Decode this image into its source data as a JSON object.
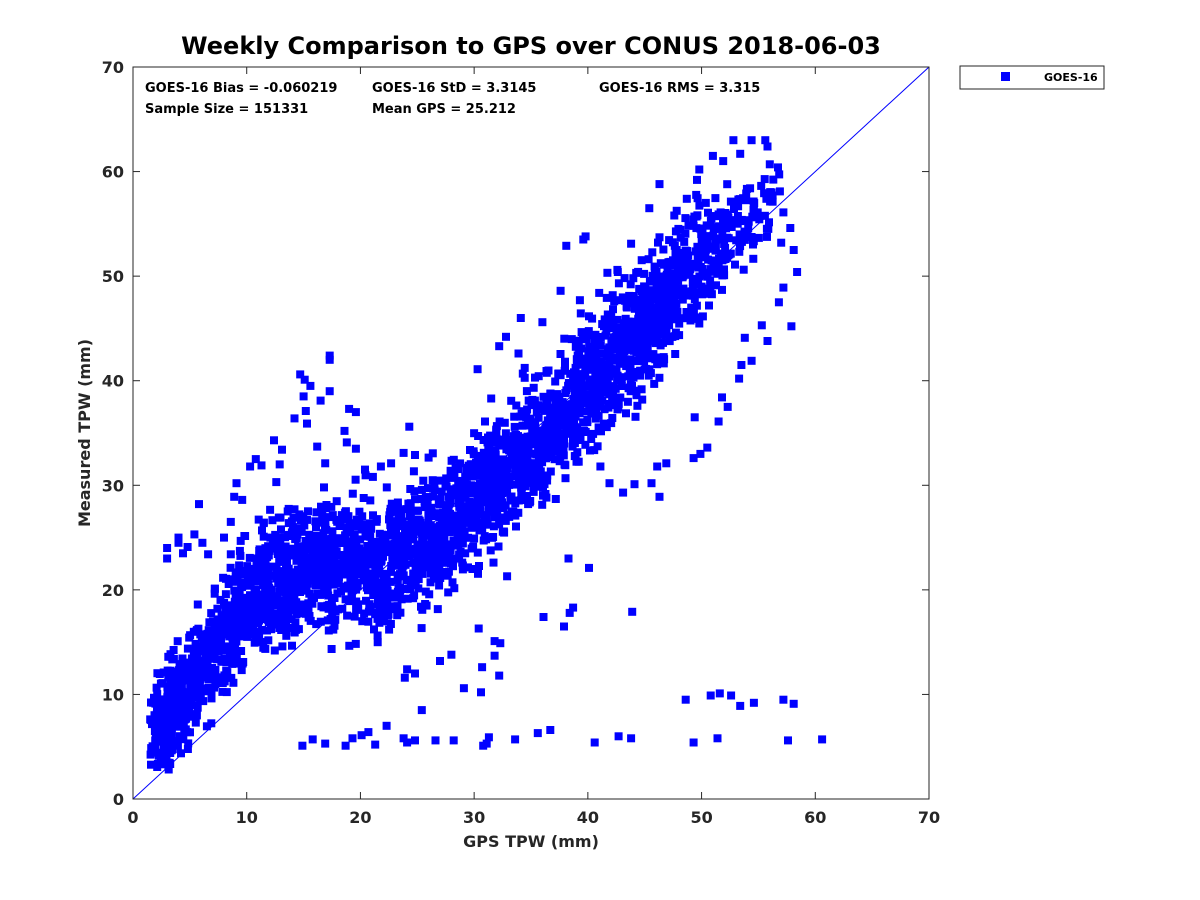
{
  "chart_data": {
    "type": "scatter",
    "title": "Weekly Comparison to GPS over CONUS 2018-06-03",
    "xlabel": "GPS TPW (mm)",
    "ylabel": "Measured TPW (mm)",
    "xlim": [
      0,
      70
    ],
    "ylim": [
      0,
      70
    ],
    "xticks": [
      0,
      10,
      20,
      30,
      40,
      50,
      60,
      70
    ],
    "yticks": [
      0,
      10,
      20,
      30,
      40,
      50,
      60,
      70
    ],
    "grid": false,
    "legend_position": "outside-top-right",
    "reference_line": {
      "label": "1:1",
      "from": [
        0,
        0
      ],
      "to": [
        70,
        70
      ],
      "color": "#0000ff"
    },
    "stats": {
      "bias_text": "GOES-16 Bias = -0.060219",
      "std_text": "GOES-16 StD = 3.3145",
      "rms_text": "GOES-16 RMS = 3.315",
      "sample_text": "Sample Size = 151331",
      "mean_text": "Mean GPS = 25.212"
    },
    "series": [
      {
        "name": "GOES-16",
        "color": "#0000ff",
        "marker": "square",
        "main_cloud": [
          [
            1.5,
            3.5,
            2.5,
            3.2,
            0.9
          ],
          [
            3,
            5,
            4,
            3.0,
            1.0
          ],
          [
            5,
            7,
            5,
            3.0,
            1.0
          ],
          [
            7,
            9,
            6,
            3.2,
            1.0
          ],
          [
            9,
            11,
            7,
            3.4,
            1.0
          ],
          [
            11,
            13,
            7,
            3.6,
            1.0
          ],
          [
            13,
            15,
            6,
            3.6,
            1.0
          ],
          [
            15,
            17,
            5,
            3.6,
            1.0
          ],
          [
            17,
            19,
            3,
            3.6,
            1.0
          ],
          [
            19,
            21,
            1,
            3.6,
            1.0
          ],
          [
            21,
            23,
            -1,
            3.6,
            1.0
          ],
          [
            23,
            25,
            -2,
            3.6,
            1.0
          ],
          [
            25,
            27,
            -3,
            3.6,
            1.0
          ],
          [
            27,
            29,
            -3,
            3.6,
            1.0
          ],
          [
            29,
            31,
            -3,
            3.6,
            1.0
          ],
          [
            31,
            33,
            -3,
            3.6,
            1.0
          ],
          [
            33,
            35,
            -3,
            3.6,
            1.0
          ],
          [
            35,
            37,
            -3,
            3.6,
            1.0
          ],
          [
            37,
            39,
            -3,
            3.8,
            1.0
          ],
          [
            39,
            41,
            -2,
            3.8,
            1.0
          ],
          [
            41,
            43,
            -2,
            3.8,
            1.0
          ],
          [
            43,
            45,
            -1,
            3.8,
            1.0
          ],
          [
            45,
            47,
            -1,
            3.8,
            0.9
          ],
          [
            47,
            49,
            0,
            3.6,
            0.8
          ],
          [
            49,
            51,
            0,
            3.4,
            0.65
          ],
          [
            51,
            53,
            0,
            3.0,
            0.45
          ],
          [
            53,
            55,
            0,
            2.8,
            0.3
          ],
          [
            55,
            57,
            0,
            2.6,
            0.15
          ]
        ],
        "outliers": [
          [
            3.0,
            24.0
          ],
          [
            3.0,
            23.0
          ],
          [
            4.0,
            25.0
          ],
          [
            4.0,
            24.5
          ],
          [
            4.4,
            23.5
          ],
          [
            4.8,
            24.1
          ],
          [
            5.4,
            25.3
          ],
          [
            5.8,
            28.2
          ],
          [
            6.1,
            24.5
          ],
          [
            6.6,
            23.4
          ],
          [
            8.0,
            25.0
          ],
          [
            8.6,
            26.5
          ],
          [
            8.6,
            23.4
          ],
          [
            8.9,
            28.9
          ],
          [
            9.1,
            30.2
          ],
          [
            9.6,
            28.6
          ],
          [
            10.3,
            31.8
          ],
          [
            10.8,
            32.5
          ],
          [
            11.3,
            31.9
          ],
          [
            12.6,
            30.3
          ],
          [
            12.9,
            32.0
          ],
          [
            13.1,
            33.4
          ],
          [
            12.4,
            34.3
          ],
          [
            13.6,
            27.5
          ],
          [
            14.2,
            36.4
          ],
          [
            14.7,
            40.6
          ],
          [
            15.1,
            40.1
          ],
          [
            15.0,
            38.5
          ],
          [
            15.2,
            37.1
          ],
          [
            15.3,
            35.9
          ],
          [
            15.6,
            39.5
          ],
          [
            16.5,
            38.1
          ],
          [
            16.2,
            33.7
          ],
          [
            16.8,
            29.8
          ],
          [
            16.9,
            32.1
          ],
          [
            17.3,
            42.4
          ],
          [
            17.3,
            42.0
          ],
          [
            17.3,
            39.0
          ],
          [
            18.6,
            35.2
          ],
          [
            19.0,
            37.3
          ],
          [
            18.8,
            34.1
          ],
          [
            19.6,
            37.0
          ],
          [
            19.6,
            33.5
          ],
          [
            20.4,
            31.5
          ],
          [
            21.1,
            30.8
          ],
          [
            21.8,
            31.8
          ],
          [
            22.7,
            32.1
          ],
          [
            23.8,
            33.1
          ],
          [
            24.3,
            35.6
          ],
          [
            24.8,
            32.9
          ],
          [
            2.7,
            12.1
          ],
          [
            3.1,
            13.6
          ],
          [
            3.6,
            13.4
          ],
          [
            4.1,
            12.9
          ],
          [
            14.9,
            5.1
          ],
          [
            15.8,
            5.7
          ],
          [
            16.9,
            5.3
          ],
          [
            18.7,
            5.1
          ],
          [
            19.3,
            5.8
          ],
          [
            20.1,
            6.1
          ],
          [
            20.7,
            6.4
          ],
          [
            21.3,
            5.2
          ],
          [
            22.3,
            7.0
          ],
          [
            23.8,
            5.8
          ],
          [
            24.1,
            5.4
          ],
          [
            24.8,
            5.6
          ],
          [
            26.6,
            5.6
          ],
          [
            28.2,
            5.6
          ],
          [
            30.8,
            5.1
          ],
          [
            31.1,
            5.3
          ],
          [
            31.3,
            5.9
          ],
          [
            33.6,
            5.7
          ],
          [
            35.6,
            6.3
          ],
          [
            36.7,
            6.6
          ],
          [
            40.6,
            5.4
          ],
          [
            42.7,
            6.0
          ],
          [
            43.8,
            5.8
          ],
          [
            49.3,
            5.4
          ],
          [
            51.4,
            5.8
          ],
          [
            53.4,
            8.9
          ],
          [
            54.6,
            9.2
          ],
          [
            57.6,
            5.6
          ],
          [
            60.6,
            5.7
          ],
          [
            58.1,
            9.1
          ],
          [
            48.6,
            9.5
          ],
          [
            50.8,
            9.9
          ],
          [
            51.6,
            10.1
          ],
          [
            52.6,
            9.9
          ],
          [
            57.2,
            9.5
          ],
          [
            23.9,
            11.6
          ],
          [
            24.1,
            12.4
          ],
          [
            29.1,
            10.6
          ],
          [
            30.6,
            10.2
          ],
          [
            30.7,
            12.6
          ],
          [
            31.8,
            15.1
          ],
          [
            31.8,
            13.7
          ],
          [
            36.1,
            17.4
          ],
          [
            38.3,
            23.0
          ],
          [
            40.1,
            22.1
          ],
          [
            37.9,
            16.5
          ],
          [
            38.7,
            18.3
          ],
          [
            32.3,
            14.9
          ],
          [
            38.4,
            17.8
          ],
          [
            43.9,
            17.9
          ],
          [
            27.0,
            13.2
          ],
          [
            32.2,
            11.8
          ],
          [
            25.4,
            8.5
          ],
          [
            28.0,
            13.8
          ],
          [
            30.4,
            16.3
          ],
          [
            24.8,
            12.0
          ],
          [
            32.9,
            21.3
          ],
          [
            57.8,
            54.6
          ],
          [
            58.1,
            52.5
          ],
          [
            56.8,
            47.5
          ],
          [
            57.9,
            45.2
          ],
          [
            58.4,
            50.4
          ],
          [
            57.2,
            48.9
          ],
          [
            52.8,
            63.0
          ],
          [
            54.4,
            63.0
          ],
          [
            55.6,
            63.0
          ],
          [
            55.8,
            62.4
          ],
          [
            57.2,
            56.1
          ],
          [
            57.0,
            53.2
          ],
          [
            56.0,
            60.7
          ],
          [
            53.4,
            61.7
          ],
          [
            49.6,
            59.2
          ],
          [
            46.3,
            58.8
          ],
          [
            49.8,
            60.2
          ],
          [
            51.0,
            61.5
          ],
          [
            51.9,
            61.0
          ],
          [
            55.7,
            57.4
          ],
          [
            47.6,
            55.8
          ],
          [
            48.7,
            57.4
          ],
          [
            45.4,
            56.5
          ],
          [
            43.8,
            53.1
          ],
          [
            42.6,
            50.6
          ],
          [
            39.6,
            53.5
          ],
          [
            39.8,
            53.8
          ],
          [
            38.1,
            52.9
          ],
          [
            44.0,
            49.8
          ],
          [
            41.0,
            48.4
          ],
          [
            39.3,
            47.7
          ],
          [
            33.9,
            42.6
          ],
          [
            32.2,
            43.3
          ],
          [
            32.8,
            44.2
          ],
          [
            30.3,
            41.1
          ],
          [
            31.5,
            38.3
          ],
          [
            34.1,
            46.0
          ],
          [
            36.0,
            45.6
          ],
          [
            37.6,
            48.6
          ],
          [
            49.3,
            32.6
          ],
          [
            51.5,
            36.1
          ],
          [
            51.8,
            38.4
          ],
          [
            50.5,
            33.6
          ],
          [
            46.3,
            28.9
          ],
          [
            46.1,
            31.8
          ],
          [
            43.1,
            29.3
          ],
          [
            41.1,
            31.8
          ],
          [
            41.9,
            30.2
          ],
          [
            44.1,
            30.1
          ],
          [
            45.6,
            30.2
          ],
          [
            46.9,
            32.1
          ],
          [
            49.4,
            36.5
          ],
          [
            49.9,
            33.0
          ],
          [
            52.3,
            37.5
          ],
          [
            53.5,
            41.5
          ],
          [
            54.4,
            41.9
          ],
          [
            55.3,
            45.3
          ],
          [
            55.8,
            43.8
          ],
          [
            53.8,
            44.1
          ],
          [
            53.3,
            40.2
          ]
        ]
      }
    ]
  }
}
